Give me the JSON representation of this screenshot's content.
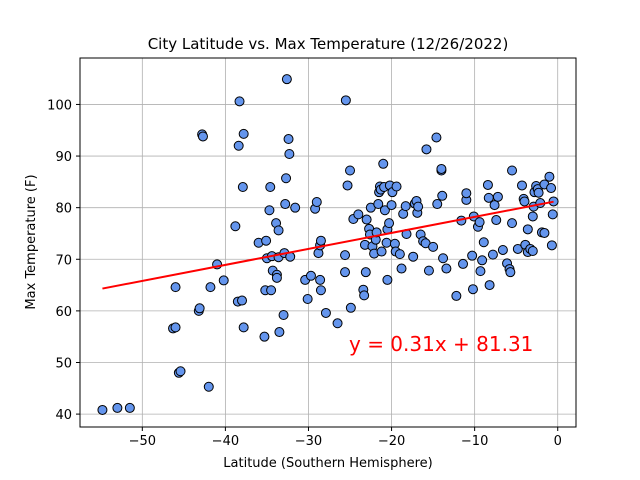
{
  "chart_data": {
    "type": "scatter",
    "title": "City Latitude vs. Max Temperature (12/26/2022)",
    "xlabel": "Latitude (Southern Hemisphere)",
    "ylabel": "Max Temperature (F)",
    "xlim": [
      -57.5,
      2.2
    ],
    "ylim": [
      37.5,
      109
    ],
    "xticks": [
      -50,
      -40,
      -30,
      -20,
      -10,
      0
    ],
    "yticks": [
      40,
      50,
      60,
      70,
      80,
      90,
      100
    ],
    "grid": true,
    "point_color": "#6495ed",
    "line_color": "#ff0000",
    "regression": {
      "slope": 0.31,
      "intercept": 81.31,
      "x_range": [
        -54.8,
        -0.5
      ],
      "equation_label": "y = 0.31x + 81.31"
    },
    "points": [
      [
        -54.8,
        40.8
      ],
      [
        -53.0,
        41.2
      ],
      [
        -51.5,
        41.2
      ],
      [
        -46.3,
        56.6
      ],
      [
        -46.0,
        56.8
      ],
      [
        -46.0,
        64.6
      ],
      [
        -45.6,
        48.0
      ],
      [
        -45.4,
        48.3
      ],
      [
        -43.2,
        60.0
      ],
      [
        -43.1,
        60.5
      ],
      [
        -42.8,
        94.2
      ],
      [
        -42.7,
        93.8
      ],
      [
        -42.0,
        45.3
      ],
      [
        -41.8,
        64.6
      ],
      [
        -41.0,
        69.0
      ],
      [
        -40.2,
        65.9
      ],
      [
        -38.8,
        76.4
      ],
      [
        -38.5,
        61.8
      ],
      [
        -38.4,
        92.0
      ],
      [
        -38.3,
        100.6
      ],
      [
        -38.0,
        62.0
      ],
      [
        -37.8,
        56.8
      ],
      [
        -37.9,
        84.0
      ],
      [
        -37.8,
        94.3
      ],
      [
        -36.0,
        73.2
      ],
      [
        -35.3,
        55.0
      ],
      [
        -35.2,
        64.0
      ],
      [
        -35.1,
        73.6
      ],
      [
        -35.0,
        70.2
      ],
      [
        -34.7,
        79.5
      ],
      [
        -34.6,
        84.0
      ],
      [
        -34.5,
        64.0
      ],
      [
        -34.3,
        67.8
      ],
      [
        -34.4,
        70.6
      ],
      [
        -33.9,
        77.0
      ],
      [
        -33.8,
        67.0
      ],
      [
        -33.8,
        66.4
      ],
      [
        -33.6,
        75.6
      ],
      [
        -33.6,
        70.4
      ],
      [
        -33.5,
        55.9
      ],
      [
        -33.0,
        59.2
      ],
      [
        -32.9,
        71.2
      ],
      [
        -32.8,
        80.7
      ],
      [
        -32.7,
        85.7
      ],
      [
        -32.6,
        104.9
      ],
      [
        -32.4,
        93.3
      ],
      [
        -32.3,
        90.4
      ],
      [
        -32.2,
        70.5
      ],
      [
        -31.6,
        80.0
      ],
      [
        -30.4,
        66.0
      ],
      [
        -30.1,
        62.3
      ],
      [
        -29.7,
        66.8
      ],
      [
        -29.2,
        79.8
      ],
      [
        -29.0,
        81.1
      ],
      [
        -28.8,
        71.2
      ],
      [
        -28.6,
        72.7
      ],
      [
        -28.5,
        73.6
      ],
      [
        -28.6,
        66.0
      ],
      [
        -28.5,
        64.0
      ],
      [
        -27.9,
        59.6
      ],
      [
        -26.5,
        57.6
      ],
      [
        -25.5,
        100.8
      ],
      [
        -25.6,
        70.8
      ],
      [
        -25.6,
        67.5
      ],
      [
        -25.3,
        84.3
      ],
      [
        -25.0,
        87.2
      ],
      [
        -24.9,
        60.6
      ],
      [
        -24.6,
        77.8
      ],
      [
        -24.0,
        78.7
      ],
      [
        -23.4,
        64.1
      ],
      [
        -23.3,
        63.0
      ],
      [
        -23.2,
        72.8
      ],
      [
        -23.1,
        67.5
      ],
      [
        -23.0,
        77.7
      ],
      [
        -22.7,
        75.9
      ],
      [
        -22.6,
        74.8
      ],
      [
        -22.5,
        80.0
      ],
      [
        -22.3,
        72.5
      ],
      [
        -22.1,
        71.1
      ],
      [
        -21.9,
        73.8
      ],
      [
        -21.8,
        75.2
      ],
      [
        -21.6,
        80.7
      ],
      [
        -21.5,
        83.0
      ],
      [
        -21.4,
        84.1
      ],
      [
        -21.3,
        83.5
      ],
      [
        -21.2,
        71.5
      ],
      [
        -21.0,
        88.5
      ],
      [
        -20.9,
        84.0
      ],
      [
        -20.8,
        79.5
      ],
      [
        -20.6,
        73.2
      ],
      [
        -20.5,
        75.8
      ],
      [
        -20.5,
        66.0
      ],
      [
        -20.3,
        77.0
      ],
      [
        -20.2,
        84.3
      ],
      [
        -20.0,
        80.5
      ],
      [
        -19.9,
        83.0
      ],
      [
        -19.6,
        73.0
      ],
      [
        -19.5,
        71.5
      ],
      [
        -19.4,
        84.1
      ],
      [
        -19.0,
        71.0
      ],
      [
        -18.8,
        68.2
      ],
      [
        -18.6,
        78.8
      ],
      [
        -18.3,
        80.3
      ],
      [
        -18.2,
        74.9
      ],
      [
        -17.4,
        70.5
      ],
      [
        -17.2,
        80.8
      ],
      [
        -17.0,
        81.3
      ],
      [
        -16.9,
        79.0
      ],
      [
        -16.8,
        80.2
      ],
      [
        -16.5,
        74.8
      ],
      [
        -16.2,
        73.5
      ],
      [
        -15.9,
        73.1
      ],
      [
        -15.8,
        91.3
      ],
      [
        -15.5,
        67.8
      ],
      [
        -15.0,
        72.4
      ],
      [
        -14.6,
        93.6
      ],
      [
        -14.5,
        80.7
      ],
      [
        -14.0,
        87.2
      ],
      [
        -14.0,
        87.5
      ],
      [
        -13.9,
        82.3
      ],
      [
        -13.8,
        70.2
      ],
      [
        -13.4,
        68.2
      ],
      [
        -12.2,
        62.9
      ],
      [
        -11.6,
        77.5
      ],
      [
        -11.4,
        69.1
      ],
      [
        -11.0,
        81.5
      ],
      [
        -11.0,
        82.8
      ],
      [
        -10.3,
        70.7
      ],
      [
        -10.2,
        64.2
      ],
      [
        -10.1,
        78.3
      ],
      [
        -9.6,
        76.3
      ],
      [
        -9.4,
        77.2
      ],
      [
        -9.3,
        67.7
      ],
      [
        -9.1,
        69.8
      ],
      [
        -8.9,
        73.3
      ],
      [
        -8.4,
        84.4
      ],
      [
        -8.3,
        81.9
      ],
      [
        -8.2,
        65.0
      ],
      [
        -7.8,
        70.9
      ],
      [
        -7.6,
        80.5
      ],
      [
        -7.4,
        77.6
      ],
      [
        -7.2,
        82.1
      ],
      [
        -6.6,
        71.8
      ],
      [
        -6.1,
        69.2
      ],
      [
        -5.8,
        68.1
      ],
      [
        -5.7,
        67.5
      ],
      [
        -5.5,
        77.0
      ],
      [
        -5.5,
        87.2
      ],
      [
        -4.8,
        72.0
      ],
      [
        -4.3,
        84.3
      ],
      [
        -4.1,
        81.7
      ],
      [
        -4.0,
        81.2
      ],
      [
        -3.9,
        72.8
      ],
      [
        -3.6,
        71.4
      ],
      [
        -3.3,
        72.0
      ],
      [
        -3.0,
        71.6
      ],
      [
        -3.6,
        75.8
      ],
      [
        -3.0,
        78.3
      ],
      [
        -2.9,
        80.2
      ],
      [
        -2.8,
        83.0
      ],
      [
        -2.6,
        84.2
      ],
      [
        -2.4,
        83.6
      ],
      [
        -2.3,
        82.9
      ],
      [
        -2.1,
        80.9
      ],
      [
        -1.9,
        75.2
      ],
      [
        -1.6,
        75.1
      ],
      [
        -1.6,
        84.5
      ],
      [
        -1.0,
        86.0
      ],
      [
        -0.8,
        83.8
      ],
      [
        -0.7,
        72.7
      ],
      [
        -0.6,
        78.7
      ],
      [
        -0.5,
        81.2
      ]
    ]
  }
}
